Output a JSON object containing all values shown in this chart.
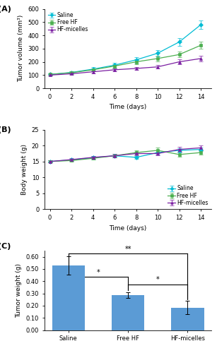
{
  "days": [
    0,
    2,
    4,
    6,
    8,
    10,
    12,
    14
  ],
  "tumor_volume": {
    "Saline": [
      105,
      120,
      145,
      175,
      215,
      265,
      350,
      480
    ],
    "Free HF": [
      105,
      118,
      140,
      168,
      200,
      225,
      255,
      325
    ],
    "HF-micelles": [
      100,
      110,
      125,
      140,
      150,
      162,
      200,
      225
    ]
  },
  "tumor_volume_err": {
    "Saline": [
      8,
      10,
      14,
      18,
      20,
      25,
      28,
      30
    ],
    "Free HF": [
      7,
      9,
      12,
      15,
      18,
      20,
      22,
      25
    ],
    "HF-micelles": [
      6,
      8,
      10,
      12,
      12,
      14,
      18,
      20
    ]
  },
  "body_weight": {
    "Saline": [
      15.0,
      15.5,
      16.2,
      16.8,
      16.3,
      17.8,
      18.5,
      18.8
    ],
    "Free HF": [
      15.0,
      15.3,
      16.0,
      16.8,
      17.8,
      18.5,
      17.2,
      17.8
    ],
    "HF-micelles": [
      15.0,
      15.6,
      16.3,
      16.8,
      17.5,
      17.5,
      18.8,
      19.3
    ]
  },
  "body_weight_err": {
    "Saline": [
      0.3,
      0.4,
      0.5,
      0.5,
      0.5,
      0.6,
      0.6,
      0.6
    ],
    "Free HF": [
      0.3,
      0.4,
      0.5,
      0.6,
      0.6,
      0.8,
      0.8,
      0.7
    ],
    "HF-micelles": [
      0.3,
      0.4,
      0.5,
      0.5,
      0.5,
      0.6,
      0.7,
      0.7
    ]
  },
  "bar_categories": [
    "Saline",
    "Free HF",
    "HF-micelles"
  ],
  "bar_values": [
    0.527,
    0.287,
    0.183
  ],
  "bar_errors": [
    0.075,
    0.022,
    0.055
  ],
  "bar_color": "#5b9bd5",
  "line_colors": {
    "Saline": "#00bcd4",
    "Free HF": "#4caf50",
    "HF-micelles": "#7b1fa2"
  },
  "markers": {
    "Saline": "D",
    "Free HF": "s",
    "HF-micelles": "^"
  },
  "panel_labels": [
    "(A)",
    "(B)",
    "(C)"
  ],
  "ylabel_A": "Tumor volume (mm³)",
  "xlabel_AB": "Time (days)",
  "ylabel_B": "Body weight (g)",
  "ylabel_C": "Tumor weight (g)",
  "ylim_A": [
    0,
    600
  ],
  "yticks_A": [
    0,
    100,
    200,
    300,
    400,
    500,
    600
  ],
  "ylim_B": [
    0,
    25
  ],
  "yticks_B": [
    0,
    5,
    10,
    15,
    20,
    25
  ],
  "ylim_C": [
    0.0,
    0.65
  ],
  "yticks_C": [
    0.0,
    0.1,
    0.2,
    0.3,
    0.4,
    0.5,
    0.6
  ]
}
